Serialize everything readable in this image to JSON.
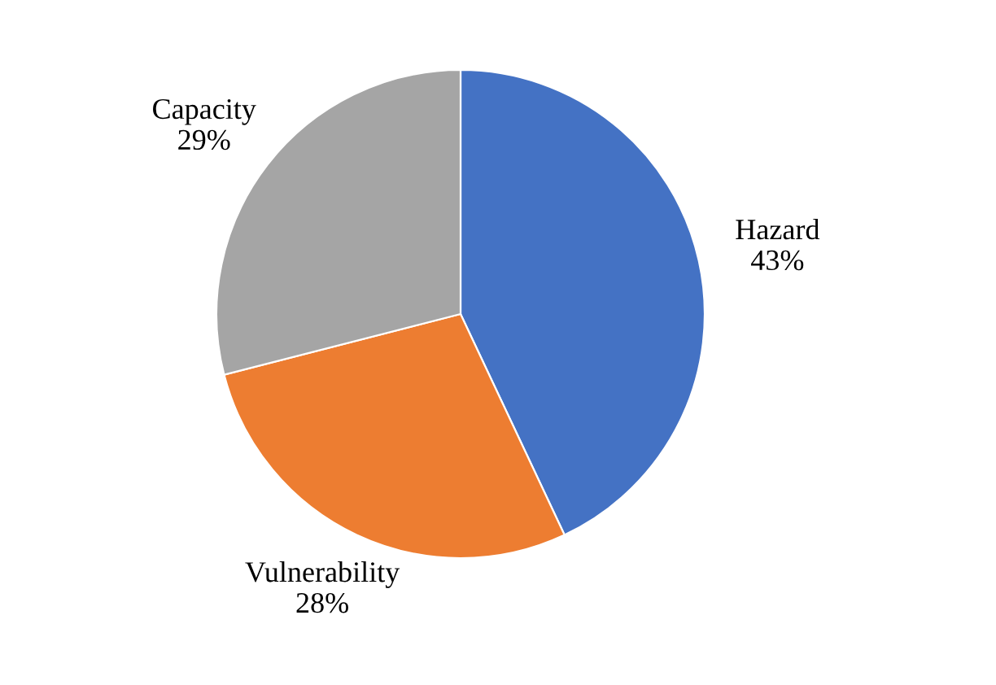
{
  "chart_data": {
    "type": "pie",
    "categories": [
      "Hazard",
      "Vulnerability",
      "Capacity"
    ],
    "values": [
      43,
      28,
      29
    ],
    "colors": [
      "#4472c4",
      "#ed7d31",
      "#a5a5a5"
    ],
    "value_labels": [
      "43%",
      "28%",
      "29%"
    ]
  }
}
